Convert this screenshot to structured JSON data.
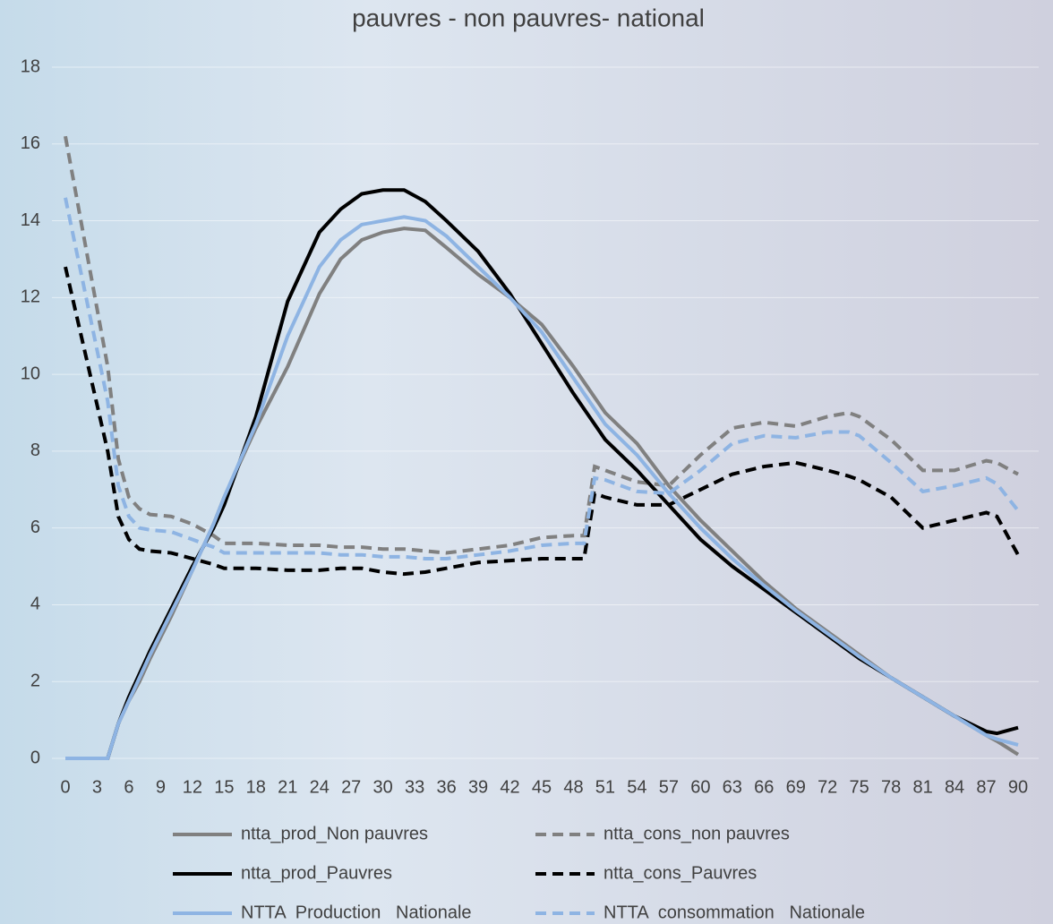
{
  "chart_data": {
    "type": "line",
    "title": "pauvres - non pauvres- national",
    "x": [
      0,
      4,
      5,
      6,
      7,
      8,
      10,
      12,
      14,
      15,
      18,
      21,
      24,
      26,
      28,
      30,
      32,
      34,
      36,
      39,
      42,
      45,
      48,
      49,
      50,
      51,
      54,
      57,
      60,
      63,
      66,
      69,
      72,
      74,
      75,
      78,
      81,
      84,
      87,
      88,
      90
    ],
    "xlim": [
      0,
      90
    ],
    "xticks": [
      0,
      3,
      6,
      9,
      12,
      15,
      18,
      21,
      24,
      27,
      30,
      33,
      36,
      39,
      42,
      45,
      48,
      51,
      54,
      57,
      60,
      63,
      66,
      69,
      72,
      75,
      78,
      81,
      84,
      87,
      90
    ],
    "ylim": [
      0,
      18
    ],
    "yticks": [
      0,
      2,
      4,
      6,
      8,
      10,
      12,
      14,
      16,
      18
    ],
    "grid": true,
    "series": [
      {
        "name": "ntta_prod_Non pauvres",
        "color": "#808080",
        "dashed": false,
        "values": [
          0,
          0,
          0.9,
          1.5,
          2.0,
          2.6,
          3.7,
          4.9,
          6.1,
          6.8,
          8.6,
          10.2,
          12.1,
          13.0,
          13.5,
          13.7,
          13.8,
          13.75,
          13.3,
          12.6,
          12.0,
          11.3,
          10.2,
          9.8,
          9.4,
          9.0,
          8.2,
          7.1,
          6.2,
          5.4,
          4.6,
          3.9,
          3.3,
          2.9,
          2.7,
          2.1,
          1.6,
          1.1,
          0.6,
          0.45,
          0.1
        ]
      },
      {
        "name": "ntta_cons_non pauvres",
        "color": "#808080",
        "dashed": true,
        "values": [
          16.2,
          10.2,
          7.8,
          6.8,
          6.5,
          6.35,
          6.3,
          6.1,
          5.8,
          5.6,
          5.6,
          5.55,
          5.55,
          5.5,
          5.5,
          5.45,
          5.45,
          5.4,
          5.35,
          5.45,
          5.55,
          5.75,
          5.8,
          5.8,
          7.6,
          7.5,
          7.2,
          7.1,
          7.9,
          8.6,
          8.75,
          8.65,
          8.9,
          9.0,
          8.9,
          8.3,
          7.5,
          7.5,
          7.75,
          7.7,
          7.4
        ]
      },
      {
        "name": "ntta_prod_Pauvres",
        "color": "#000000",
        "dashed": false,
        "values": [
          0,
          0,
          0.9,
          1.6,
          2.2,
          2.8,
          3.9,
          5.0,
          6.0,
          6.6,
          8.9,
          11.9,
          13.7,
          14.3,
          14.7,
          14.8,
          14.8,
          14.5,
          14.0,
          13.2,
          12.1,
          10.8,
          9.5,
          9.1,
          8.7,
          8.3,
          7.5,
          6.6,
          5.7,
          5.0,
          4.4,
          3.8,
          3.2,
          2.8,
          2.6,
          2.1,
          1.6,
          1.1,
          0.7,
          0.65,
          0.8
        ]
      },
      {
        "name": "ntta_cons_Pauvres",
        "color": "#000000",
        "dashed": true,
        "values": [
          12.8,
          8.0,
          6.3,
          5.7,
          5.45,
          5.4,
          5.35,
          5.2,
          5.05,
          4.95,
          4.95,
          4.9,
          4.9,
          4.95,
          4.95,
          4.85,
          4.8,
          4.85,
          4.95,
          5.1,
          5.15,
          5.2,
          5.2,
          5.2,
          6.9,
          6.8,
          6.6,
          6.6,
          7.0,
          7.4,
          7.6,
          7.7,
          7.5,
          7.35,
          7.25,
          6.8,
          6.0,
          6.2,
          6.4,
          6.3,
          5.3
        ]
      },
      {
        "name": "NTTA  Production   Nationale",
        "color": "#8eb4e3",
        "dashed": false,
        "values": [
          0,
          0,
          0.9,
          1.5,
          2.1,
          2.7,
          3.8,
          4.9,
          6.1,
          6.8,
          8.7,
          11.0,
          12.8,
          13.5,
          13.9,
          14.0,
          14.1,
          14.0,
          13.6,
          12.8,
          12.0,
          11.1,
          9.9,
          9.5,
          9.1,
          8.7,
          7.9,
          6.9,
          6.0,
          5.2,
          4.5,
          3.85,
          3.25,
          2.85,
          2.65,
          2.1,
          1.6,
          1.1,
          0.6,
          0.5,
          0.35
        ]
      },
      {
        "name": "NTTA  consommation   Nationale",
        "color": "#8eb4e3",
        "dashed": true,
        "values": [
          14.6,
          9.3,
          7.1,
          6.3,
          6.0,
          5.95,
          5.9,
          5.7,
          5.5,
          5.35,
          5.35,
          5.35,
          5.35,
          5.3,
          5.3,
          5.25,
          5.25,
          5.2,
          5.2,
          5.3,
          5.4,
          5.55,
          5.6,
          5.6,
          7.3,
          7.25,
          6.95,
          6.9,
          7.5,
          8.2,
          8.4,
          8.35,
          8.5,
          8.5,
          8.4,
          7.7,
          6.95,
          7.1,
          7.3,
          7.15,
          6.45
        ]
      }
    ]
  }
}
